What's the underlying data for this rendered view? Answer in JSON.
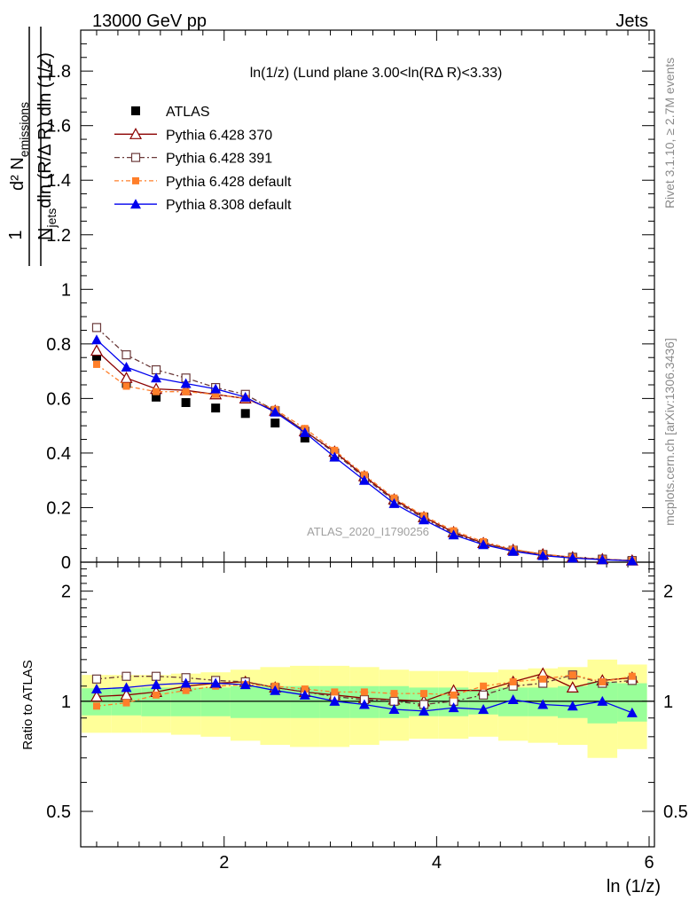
{
  "header": {
    "left": "13000 GeV pp",
    "right": "Jets"
  },
  "side_labels": {
    "rivet": "Rivet 3.1.10, ≥ 2.7M events",
    "mcplots": "mcplots.cern.ch [arXiv:1306.3436]"
  },
  "colors": {
    "atlas": "#000000",
    "py6_370": "#8b0000",
    "py6_391": "#6b3a3a",
    "py6_default": "#ff7f2a",
    "py8_default": "#0000ee",
    "band_inner": "#99ff99",
    "band_outer": "#ffff99"
  },
  "chart_data": {
    "type": "line",
    "title": "ln(1/z) (Lund plane 3.00<ln(RΔ R)<3.33)",
    "watermark": "ATLAS_2020_I1790256",
    "xlabel": "ln (1/z)",
    "ylabel": "1/N_jets d²N_emissions / dln (R/Δ R) dln (1/z)",
    "ratio_ylabel": "Ratio to ATLAS",
    "xlim": [
      0.65,
      6.05
    ],
    "ylim": [
      0,
      1.95
    ],
    "ratio_ylim": [
      0.4,
      2.4
    ],
    "x_ticks": [
      "2",
      "4",
      "6"
    ],
    "y_ticks": [
      "0",
      "0.2",
      "0.4",
      "0.6",
      "0.8",
      "1",
      "1.2",
      "1.4",
      "1.6",
      "1.8"
    ],
    "ratio_y_ticks": [
      "0.5",
      "1",
      "2"
    ],
    "x": [
      0.8,
      1.08,
      1.36,
      1.64,
      1.92,
      2.2,
      2.48,
      2.76,
      3.04,
      3.32,
      3.6,
      3.88,
      4.16,
      4.44,
      4.72,
      5.0,
      5.28,
      5.56,
      5.84
    ],
    "series": [
      {
        "name": "ATLAS",
        "marker": "square",
        "values": [
          0.755,
          0.655,
          0.605,
          0.585,
          0.565,
          0.545,
          0.51,
          0.455,
          0.385,
          0.305,
          0.225,
          0.165,
          0.105,
          0.065,
          0.04,
          0.025,
          0.015,
          0.009,
          0.005
        ],
        "ratio": [
          1,
          1,
          1,
          1,
          1,
          1,
          1,
          1,
          1,
          1,
          1,
          1,
          1,
          1,
          1,
          1,
          1,
          1,
          1
        ]
      },
      {
        "name": "Pythia 6.428 370",
        "marker": "triangle-open",
        "values": [
          0.775,
          0.675,
          0.635,
          0.63,
          0.615,
          0.6,
          0.555,
          0.48,
          0.405,
          0.315,
          0.23,
          0.165,
          0.11,
          0.07,
          0.045,
          0.029,
          0.018,
          0.011,
          0.006
        ],
        "ratio": [
          1.03,
          1.04,
          1.06,
          1.1,
          1.12,
          1.13,
          1.09,
          1.06,
          1.04,
          1.02,
          1.01,
          1.0,
          1.07,
          1.07,
          1.13,
          1.19,
          1.09,
          1.14,
          1.16
        ]
      },
      {
        "name": "Pythia 6.428 391",
        "marker": "square-open",
        "values": [
          0.86,
          0.76,
          0.705,
          0.675,
          0.64,
          0.615,
          0.555,
          0.48,
          0.4,
          0.31,
          0.225,
          0.16,
          0.105,
          0.068,
          0.044,
          0.028,
          0.018,
          0.011,
          0.006
        ],
        "ratio": [
          1.15,
          1.17,
          1.17,
          1.16,
          1.14,
          1.13,
          1.09,
          1.06,
          1.03,
          1.01,
          1.0,
          0.98,
          1.0,
          1.04,
          1.1,
          1.12,
          1.18,
          1.12,
          1.14
        ]
      },
      {
        "name": "Pythia 6.428 default",
        "marker": "square-filled",
        "values": [
          0.725,
          0.645,
          0.625,
          0.625,
          0.615,
          0.6,
          0.56,
          0.49,
          0.41,
          0.32,
          0.235,
          0.17,
          0.115,
          0.075,
          0.047,
          0.03,
          0.018,
          0.011,
          0.006
        ],
        "ratio": [
          0.97,
          0.99,
          1.04,
          1.07,
          1.1,
          1.11,
          1.1,
          1.08,
          1.06,
          1.06,
          1.05,
          1.05,
          1.04,
          1.1,
          1.13,
          1.15,
          1.18,
          1.13,
          1.17
        ]
      },
      {
        "name": "Pythia 8.308 default",
        "marker": "triangle-filled",
        "values": [
          0.815,
          0.715,
          0.675,
          0.655,
          0.635,
          0.605,
          0.55,
          0.475,
          0.385,
          0.3,
          0.215,
          0.155,
          0.1,
          0.064,
          0.04,
          0.024,
          0.015,
          0.009,
          0.005
        ],
        "ratio": [
          1.08,
          1.09,
          1.11,
          1.12,
          1.12,
          1.11,
          1.07,
          1.04,
          1.0,
          0.98,
          0.95,
          0.94,
          0.96,
          0.95,
          1.01,
          0.98,
          0.97,
          1.0,
          0.93
        ]
      }
    ],
    "band_inner": [
      0.085,
      0.085,
      0.09,
      0.09,
      0.09,
      0.1,
      0.1,
      0.1,
      0.1,
      0.1,
      0.1,
      0.09,
      0.09,
      0.08,
      0.09,
      0.09,
      0.1,
      0.13,
      0.12
    ],
    "band_outer": [
      0.18,
      0.18,
      0.18,
      0.19,
      0.2,
      0.22,
      0.24,
      0.25,
      0.25,
      0.24,
      0.22,
      0.21,
      0.21,
      0.2,
      0.22,
      0.23,
      0.24,
      0.3,
      0.26
    ],
    "legend_position": "top-left",
    "grid": false
  }
}
